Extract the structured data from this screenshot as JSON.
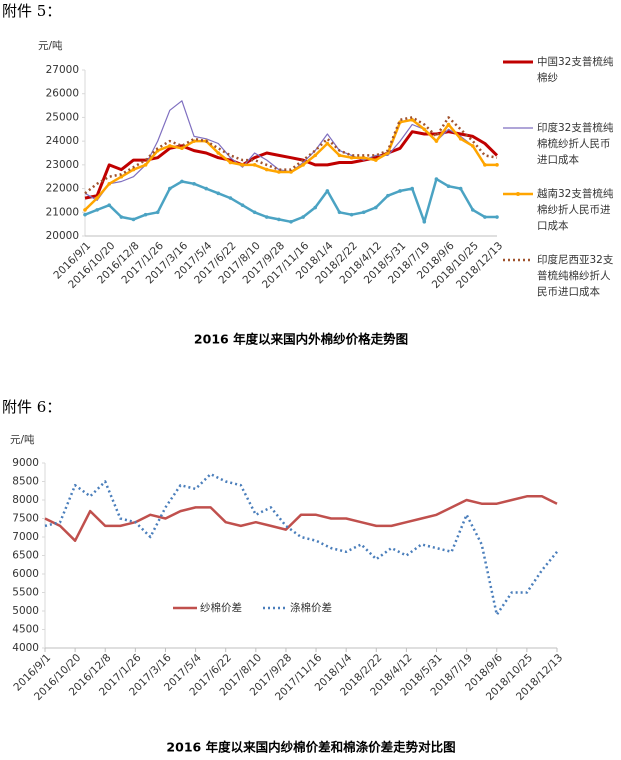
{
  "headings": [
    "附件 5：",
    "附件 6："
  ],
  "chart_data": [
    {
      "type": "line",
      "title": "2016 年度以来国内外棉纱价格走势图",
      "y_label": "元/吨",
      "categories": [
        "2016/9/1",
        null,
        "2016/10/20",
        null,
        "2016/12/8",
        null,
        "2017/1/26",
        null,
        "2017/3/16",
        null,
        "2017/5/4",
        null,
        "2017/6/22",
        null,
        "2017/8/10",
        null,
        "2017/9/28",
        null,
        "2017/11/16",
        null,
        "2018/1/4",
        null,
        "2018/2/22",
        null,
        "2018/4/12",
        null,
        "2018/5/31",
        null,
        "2018/7/19",
        null,
        "2018/9/6",
        null,
        "2018/10/25",
        null,
        "2018/12/13"
      ],
      "ylim": [
        20000,
        27000
      ],
      "yticks": [
        20000,
        21000,
        22000,
        23000,
        24000,
        25000,
        26000,
        27000
      ],
      "legend": "right",
      "series": [
        {
          "name": "中国32支普梳纯棉纱",
          "color": "#c00000",
          "width": 3,
          "style": "solid",
          "values": [
            21600,
            21700,
            23000,
            22800,
            23200,
            23200,
            23300,
            23700,
            23800,
            23600,
            23500,
            23300,
            23200,
            23000,
            23300,
            23500,
            23400,
            23300,
            23200,
            23000,
            23000,
            23100,
            23100,
            23200,
            23300,
            23500,
            23700,
            24400,
            24300,
            24300,
            24400,
            24300,
            24200,
            23900,
            23400
          ]
        },
        {
          "name": "印度32支普梳纯棉梳纱折人民币进口成本",
          "color": "#7f6fc0",
          "width": 1.2,
          "style": "solid",
          "values": [
            21800,
            21500,
            22200,
            22300,
            22500,
            23000,
            24000,
            25300,
            25700,
            24200,
            24100,
            23900,
            23300,
            22900,
            23500,
            23200,
            22800,
            22700,
            23100,
            23600,
            24300,
            23600,
            23400,
            23200,
            23400,
            23400,
            24000,
            24700,
            24500,
            24000,
            24500,
            24200,
            23800,
            23000,
            23000
          ]
        },
        {
          "name": "越南32支普梳纯棉纱折人民币进口成本",
          "color": "#ffa500",
          "width": 2.5,
          "style": "marker",
          "values": [
            21100,
            21600,
            22200,
            22500,
            22800,
            23000,
            23600,
            23800,
            23700,
            24000,
            24000,
            23500,
            23100,
            23000,
            23000,
            22800,
            22700,
            22700,
            23000,
            23400,
            23900,
            23400,
            23300,
            23300,
            23200,
            23500,
            24800,
            24900,
            24500,
            24000,
            24700,
            24100,
            23800,
            23000,
            23000
          ]
        },
        {
          "name": "印度尼西亚32支普梳纯棉纱折人民币进口成本",
          "color": "#a0522d",
          "width": 2.5,
          "style": "dotted",
          "values": [
            21800,
            22200,
            22500,
            22600,
            22900,
            23200,
            23700,
            24000,
            23800,
            24100,
            24000,
            23700,
            23400,
            23200,
            23200,
            23000,
            22800,
            22800,
            23200,
            23600,
            24100,
            23600,
            23400,
            23400,
            23400,
            23600,
            24900,
            25000,
            24700,
            24200,
            25000,
            24500,
            24000,
            23400,
            23300
          ]
        },
        {
          "color": "#4ba3c3",
          "width": 2.5,
          "style": "marker",
          "values": [
            20900,
            21100,
            21300,
            20800,
            20700,
            20900,
            21000,
            22000,
            22300,
            22200,
            22000,
            21800,
            21600,
            21300,
            21000,
            20800,
            20700,
            20600,
            20800,
            21200,
            21900,
            21000,
            20900,
            21000,
            21200,
            21700,
            21900,
            22000,
            20600,
            22400,
            22100,
            22000,
            21100,
            20800,
            20800
          ]
        }
      ]
    },
    {
      "type": "line",
      "title": "2016 年度以来国内纱棉价差和棉涤价差走势对比图",
      "y_label": "元/吨",
      "categories": [
        "2016/9/1",
        null,
        "2016/10/20",
        null,
        "2016/12/8",
        null,
        "2017/1/26",
        null,
        "2017/3/16",
        null,
        "2017/5/4",
        null,
        "2017/6/22",
        null,
        "2017/8/10",
        null,
        "2017/9/28",
        null,
        "2017/11/16",
        null,
        "2018/1/4",
        null,
        "2018/2/22",
        null,
        "2018/4/12",
        null,
        "2018/5/31",
        null,
        "2018/7/19",
        null,
        "2018/9/6",
        null,
        "2018/10/25",
        null,
        "2018/12/13"
      ],
      "ylim": [
        4000,
        9000
      ],
      "yticks": [
        4000,
        4500,
        5000,
        5500,
        6000,
        6500,
        7000,
        7500,
        8000,
        8500,
        9000
      ],
      "legend": "lower-left",
      "series": [
        {
          "name": "纱棉价差",
          "color": "#c0504d",
          "width": 2.5,
          "style": "solid",
          "values": [
            7500,
            7300,
            6900,
            7700,
            7300,
            7300,
            7400,
            7600,
            7500,
            7700,
            7800,
            7800,
            7400,
            7300,
            7400,
            7300,
            7200,
            7600,
            7600,
            7500,
            7500,
            7400,
            7300,
            7300,
            7400,
            7500,
            7600,
            7800,
            8000,
            7900,
            7900,
            8000,
            8100,
            8100,
            7900
          ]
        },
        {
          "name": "涤棉价差",
          "color": "#4a7ebb",
          "width": 2.5,
          "style": "dotted",
          "values": [
            7300,
            7400,
            8400,
            8100,
            8500,
            7500,
            7400,
            7000,
            7800,
            8400,
            8300,
            8700,
            8500,
            8400,
            7600,
            7800,
            7300,
            7000,
            6900,
            6700,
            6600,
            6800,
            6400,
            6700,
            6500,
            6800,
            6700,
            6600,
            7600,
            6800,
            4900,
            5500,
            5500,
            6100,
            6600
          ]
        }
      ]
    }
  ]
}
